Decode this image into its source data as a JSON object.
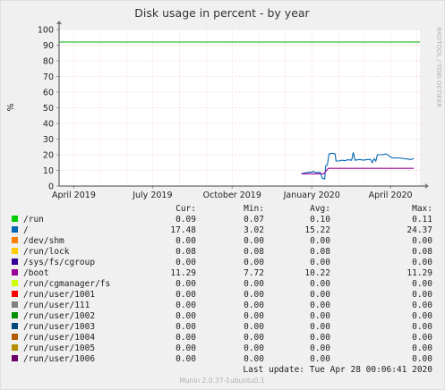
{
  "chart_data": {
    "type": "line",
    "title": "Disk usage in percent - by year",
    "ylabel": "%",
    "ylim": [
      0,
      100
    ],
    "yticks": [
      0,
      10,
      20,
      30,
      40,
      50,
      60,
      70,
      80,
      90,
      100
    ],
    "xlim": [
      "2019-03-15",
      "2020-05-05"
    ],
    "xticks": [
      {
        "date": "2019-04-01",
        "label": "April 2019"
      },
      {
        "date": "2019-07-01",
        "label": "July 2019"
      },
      {
        "date": "2019-10-01",
        "label": "October 2019"
      },
      {
        "date": "2020-01-01",
        "label": "January 2020"
      },
      {
        "date": "2020-04-01",
        "label": "April 2020"
      }
    ],
    "threshold": {
      "value": 92,
      "color": "#00aa00"
    },
    "grid": true,
    "columns": [
      "Cur:",
      "Min:",
      "Avg:",
      "Max:"
    ],
    "series": [
      {
        "name": "/run",
        "color": "#00cc00",
        "stats": [
          "0.09",
          "0.07",
          "0.10",
          "0.11"
        ]
      },
      {
        "name": "/",
        "color": "#0066b3",
        "stats": [
          "17.48",
          "3.02",
          "15.22",
          "24.37"
        ],
        "points": [
          [
            "2019-12-20",
            8
          ],
          [
            "2019-12-26",
            8.5
          ],
          [
            "2019-12-30",
            9
          ],
          [
            "2020-01-01",
            8.8
          ],
          [
            "2020-01-03",
            9.5
          ],
          [
            "2020-01-05",
            8.5
          ],
          [
            "2020-01-08",
            8.7
          ],
          [
            "2020-01-11",
            8.6
          ],
          [
            "2020-01-13",
            5
          ],
          [
            "2020-01-16",
            4.5
          ],
          [
            "2020-01-17",
            13
          ],
          [
            "2020-01-19",
            13.5
          ],
          [
            "2020-01-21",
            20.5
          ],
          [
            "2020-01-25",
            21
          ],
          [
            "2020-01-28",
            20.5
          ],
          [
            "2020-01-29",
            16
          ],
          [
            "2020-02-02",
            16
          ],
          [
            "2020-02-05",
            16.5
          ],
          [
            "2020-02-08",
            16.2
          ],
          [
            "2020-02-12",
            16.8
          ],
          [
            "2020-02-16",
            16.5
          ],
          [
            "2020-02-18",
            21.5
          ],
          [
            "2020-02-20",
            16.5
          ],
          [
            "2020-02-25",
            17
          ],
          [
            "2020-03-01",
            16.5
          ],
          [
            "2020-03-05",
            17
          ],
          [
            "2020-03-09",
            17
          ],
          [
            "2020-03-11",
            15
          ],
          [
            "2020-03-13",
            17.5
          ],
          [
            "2020-03-15",
            16
          ],
          [
            "2020-03-17",
            20
          ],
          [
            "2020-03-22",
            20
          ],
          [
            "2020-03-27",
            20.5
          ],
          [
            "2020-03-31",
            19
          ],
          [
            "2020-04-03",
            18
          ],
          [
            "2020-04-10",
            18
          ],
          [
            "2020-04-18",
            17.5
          ],
          [
            "2020-04-24",
            17
          ],
          [
            "2020-04-28",
            17.5
          ]
        ]
      },
      {
        "name": "/dev/shm",
        "color": "#ff8000",
        "stats": [
          "0.00",
          "0.00",
          "0.00",
          "0.00"
        ]
      },
      {
        "name": "/run/lock",
        "color": "#ffcc00",
        "stats": [
          "0.08",
          "0.08",
          "0.08",
          "0.08"
        ]
      },
      {
        "name": "/sys/fs/cgroup",
        "color": "#330099",
        "stats": [
          "0.00",
          "0.00",
          "0.00",
          "0.00"
        ]
      },
      {
        "name": "/boot",
        "color": "#990099",
        "stats": [
          "11.29",
          "7.72",
          "10.22",
          "11.29"
        ],
        "points": [
          [
            "2019-12-20",
            7.8
          ],
          [
            "2020-01-15",
            7.8
          ],
          [
            "2020-01-20",
            11.3
          ],
          [
            "2020-04-28",
            11.3
          ]
        ]
      },
      {
        "name": "/run/cgmanager/fs",
        "color": "#ccff00",
        "stats": [
          "0.00",
          "0.00",
          "0.00",
          "0.00"
        ]
      },
      {
        "name": "/run/user/1001",
        "color": "#ff0000",
        "stats": [
          "0.00",
          "0.00",
          "0.00",
          "0.00"
        ]
      },
      {
        "name": "/run/user/111",
        "color": "#808080",
        "stats": [
          "0.00",
          "0.00",
          "0.00",
          "0.00"
        ]
      },
      {
        "name": "/run/user/1002",
        "color": "#008f00",
        "stats": [
          "0.00",
          "0.00",
          "0.00",
          "0.00"
        ]
      },
      {
        "name": "/run/user/1003",
        "color": "#00487d",
        "stats": [
          "0.00",
          "0.00",
          "0.00",
          "0.00"
        ]
      },
      {
        "name": "/run/user/1004",
        "color": "#b35a00",
        "stats": [
          "0.00",
          "0.00",
          "0.00",
          "0.00"
        ]
      },
      {
        "name": "/run/user/1005",
        "color": "#b38f00",
        "stats": [
          "0.00",
          "0.00",
          "0.00",
          "0.00"
        ]
      },
      {
        "name": "/run/user/1006",
        "color": "#6b006b",
        "stats": [
          "0.00",
          "0.00",
          "0.00",
          "0.00"
        ]
      }
    ]
  },
  "last_update": "Last update: Tue Apr 28 00:06:41 2020",
  "watermark": "RRDTOOL / TOBI OETIKER",
  "footer": "Munin 2.0.37-1ubuntu0.1"
}
